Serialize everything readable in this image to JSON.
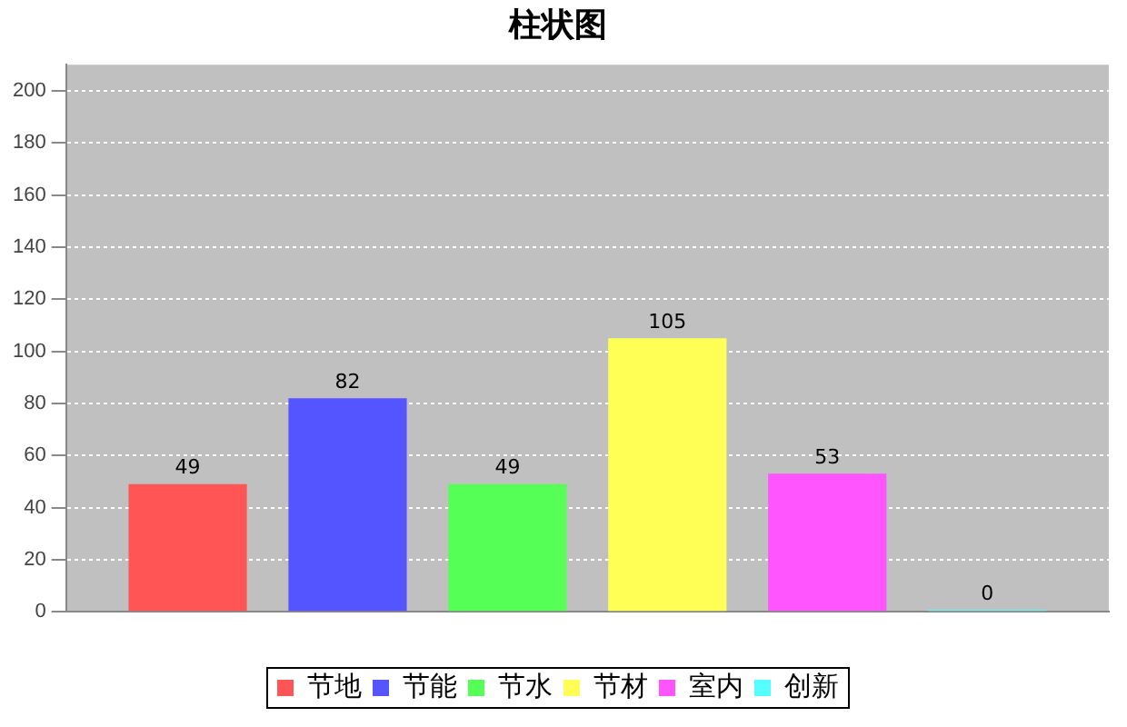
{
  "chart_data": {
    "type": "bar",
    "title": "柱状图",
    "categories": [
      null
    ],
    "series": [
      {
        "name": "节地",
        "color": "#ff5555",
        "values": [
          49
        ]
      },
      {
        "name": "节能",
        "color": "#5555ff",
        "values": [
          82
        ]
      },
      {
        "name": "节水",
        "color": "#55ff55",
        "values": [
          49
        ]
      },
      {
        "name": "节材",
        "color": "#ffff55",
        "values": [
          105
        ]
      },
      {
        "name": "室内",
        "color": "#ff55ff",
        "values": [
          53
        ]
      },
      {
        "name": "创新",
        "color": "#55ffff",
        "values": [
          0
        ]
      }
    ],
    "ylim": [
      0,
      210
    ],
    "yticks": [
      0,
      20,
      40,
      60,
      80,
      100,
      120,
      140,
      160,
      180,
      200
    ],
    "grid": "y",
    "legend": "bottom",
    "data_labels": true
  }
}
